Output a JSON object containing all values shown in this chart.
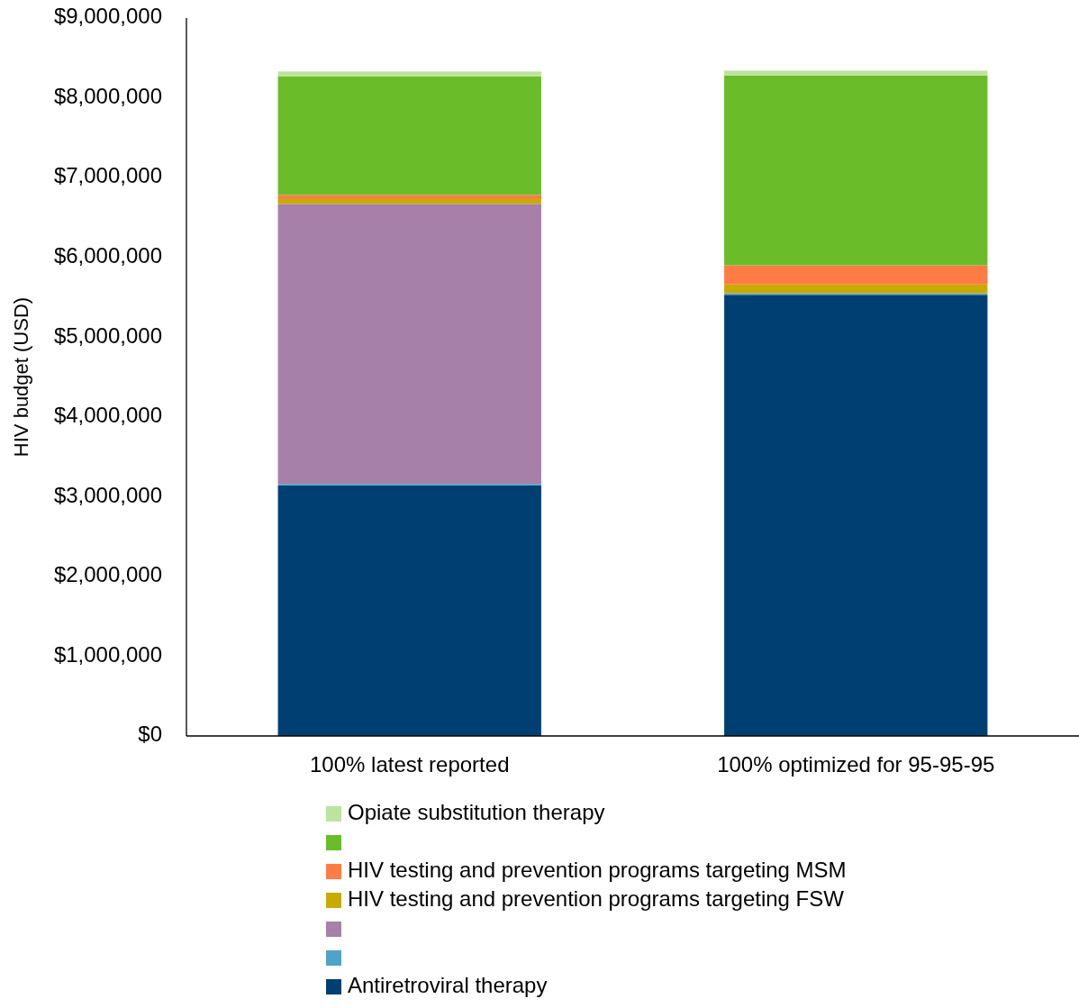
{
  "chart_data": {
    "type": "bar",
    "stacked": true,
    "ylabel": "HIV budget (USD)",
    "categories": [
      "100% latest reported",
      "100% optimized for 95-95-95"
    ],
    "ylim": [
      0,
      9000000
    ],
    "yticks": [
      {
        "value": 0,
        "label": "$0"
      },
      {
        "value": 1000000,
        "label": "$1,000,000"
      },
      {
        "value": 2000000,
        "label": "$2,000,000"
      },
      {
        "value": 3000000,
        "label": "$3,000,000"
      },
      {
        "value": 4000000,
        "label": "$4,000,000"
      },
      {
        "value": 5000000,
        "label": "$5,000,000"
      },
      {
        "value": 6000000,
        "label": "$6,000,000"
      },
      {
        "value": 7000000,
        "label": "$7,000,000"
      },
      {
        "value": 8000000,
        "label": "$8,000,000"
      },
      {
        "value": 9000000,
        "label": "$9,000,000"
      }
    ],
    "grid": false,
    "legend": "bottom",
    "series": [
      {
        "name": "Antiretroviral therapy",
        "color": "#003f72",
        "values": [
          3140000,
          5530000
        ]
      },
      {
        "color": "#4fa3c8",
        "values": [
          20000,
          20000
        ]
      },
      {
        "color": "#a680a8",
        "values": [
          3510000,
          0
        ]
      },
      {
        "name": "HIV testing and prevention programs targeting FSW",
        "color": "#c8ab00",
        "values": [
          60000,
          110000
        ]
      },
      {
        "name": "HIV testing and prevention programs targeting MSM",
        "color": "#ff7c44",
        "values": [
          50000,
          240000
        ]
      },
      {
        "color": "#6abd28",
        "values": [
          1490000,
          2380000
        ]
      },
      {
        "name": "Opiate substitution therapy",
        "color": "#bce49e",
        "values": [
          60000,
          60000
        ]
      }
    ]
  }
}
